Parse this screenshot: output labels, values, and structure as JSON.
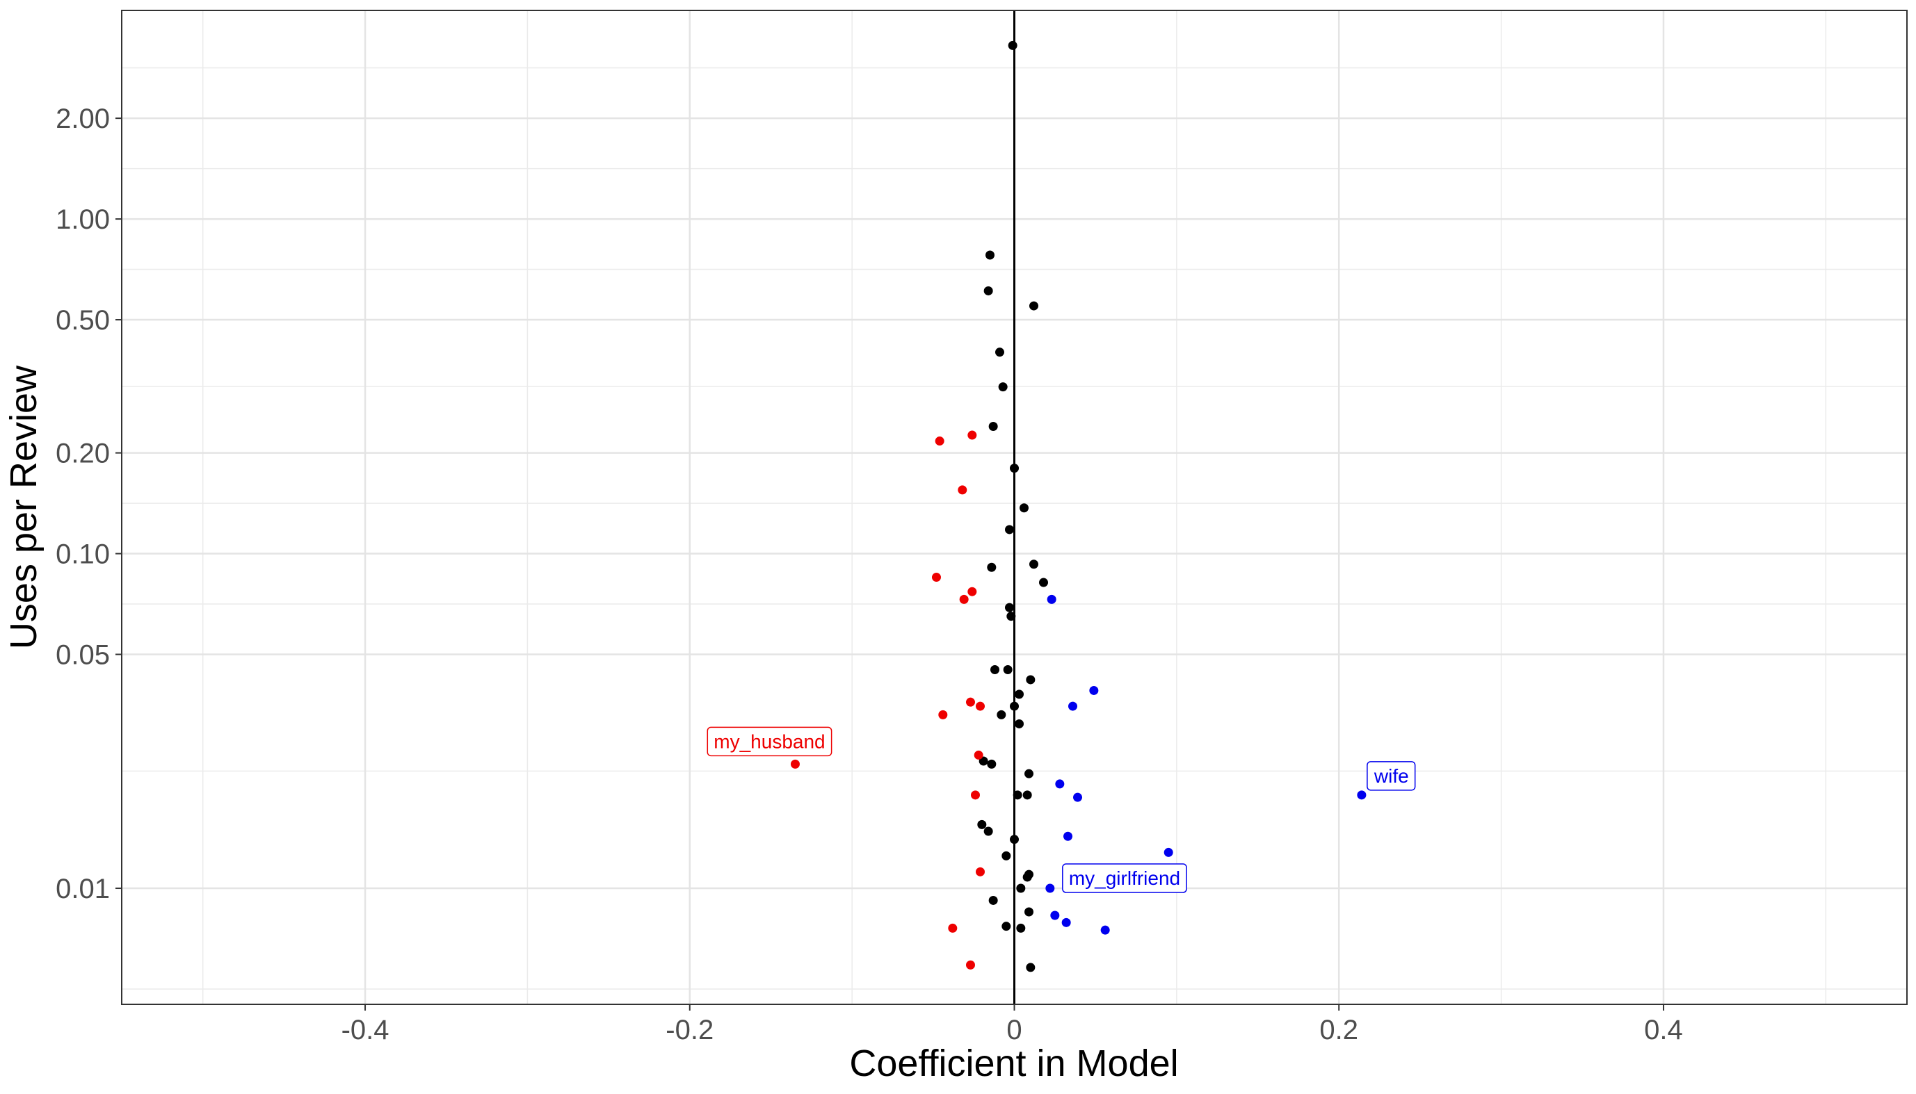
{
  "chart_data": {
    "type": "scatter",
    "xlabel": "Coefficient in Model",
    "ylabel": "Uses per Review",
    "xlim": [
      -0.55,
      0.55
    ],
    "ylim": [
      0.0045,
      4.2
    ],
    "y_scale": "log",
    "grid": true,
    "x_ticks": [
      -0.4,
      -0.2,
      0,
      0.2,
      0.4
    ],
    "x_tick_labels": [
      "-0.4",
      "-0.2",
      "0",
      "0.2",
      "0.4"
    ],
    "y_ticks": [
      0.01,
      0.05,
      0.1,
      0.2,
      0.5,
      1,
      2
    ],
    "y_tick_labels": [
      "0.01",
      "0.05",
      "0.10",
      "0.20",
      "0.50",
      "1.00",
      "2.00"
    ],
    "vertical_reference_line_x": 0,
    "colors": {
      "neutral": "#000000",
      "negative": "#ee0000",
      "positive": "#0000ee"
    },
    "series": [
      {
        "color_key": "neutral",
        "points": [
          [
            -0.001,
            3.3
          ],
          [
            -0.015,
            0.78
          ],
          [
            -0.016,
            0.61
          ],
          [
            0.012,
            0.55
          ],
          [
            -0.009,
            0.4
          ],
          [
            -0.007,
            0.315
          ],
          [
            -0.013,
            0.24
          ],
          [
            0.0,
            0.18
          ],
          [
            0.006,
            0.137
          ],
          [
            -0.003,
            0.118
          ],
          [
            0.012,
            0.093
          ],
          [
            -0.014,
            0.091
          ],
          [
            0.018,
            0.082
          ],
          [
            -0.003,
            0.069
          ],
          [
            -0.002,
            0.065
          ],
          [
            -0.012,
            0.045
          ],
          [
            -0.004,
            0.045
          ],
          [
            0.01,
            0.042
          ],
          [
            0.003,
            0.038
          ],
          [
            0.0,
            0.035
          ],
          [
            -0.008,
            0.033
          ],
          [
            0.003,
            0.031
          ],
          [
            -0.019,
            0.024
          ],
          [
            -0.014,
            0.0235
          ],
          [
            0.009,
            0.022
          ],
          [
            0.002,
            0.019
          ],
          [
            0.008,
            0.019
          ],
          [
            -0.02,
            0.0155
          ],
          [
            -0.016,
            0.0148
          ],
          [
            0.0,
            0.014
          ],
          [
            -0.005,
            0.0125
          ],
          [
            0.009,
            0.011
          ],
          [
            0.008,
            0.0108
          ],
          [
            0.004,
            0.01
          ],
          [
            -0.013,
            0.0092
          ],
          [
            0.009,
            0.0085
          ],
          [
            -0.005,
            0.0077
          ],
          [
            0.004,
            0.0076
          ],
          [
            0.01,
            0.0058
          ]
        ]
      },
      {
        "color_key": "negative",
        "points": [
          [
            -0.046,
            0.217
          ],
          [
            -0.026,
            0.226
          ],
          [
            -0.032,
            0.155
          ],
          [
            -0.048,
            0.085
          ],
          [
            -0.026,
            0.077
          ],
          [
            -0.031,
            0.073
          ],
          [
            -0.027,
            0.036
          ],
          [
            -0.021,
            0.035
          ],
          [
            -0.044,
            0.033
          ],
          [
            -0.135,
            0.0235
          ],
          [
            -0.022,
            0.025
          ],
          [
            -0.024,
            0.019
          ],
          [
            -0.021,
            0.0112
          ],
          [
            -0.038,
            0.0076
          ],
          [
            -0.027,
            0.0059
          ]
        ]
      },
      {
        "color_key": "positive",
        "points": [
          [
            0.023,
            0.073
          ],
          [
            0.049,
            0.039
          ],
          [
            0.036,
            0.035
          ],
          [
            0.028,
            0.0205
          ],
          [
            0.039,
            0.0187
          ],
          [
            0.214,
            0.019
          ],
          [
            0.033,
            0.0143
          ],
          [
            0.095,
            0.0128
          ],
          [
            0.022,
            0.01
          ],
          [
            0.025,
            0.0083
          ],
          [
            0.032,
            0.0079
          ],
          [
            0.056,
            0.0075
          ]
        ]
      }
    ],
    "annotations": [
      {
        "label": "my_husband",
        "x": -0.135,
        "y": 0.0235,
        "color_key": "negative"
      },
      {
        "label": "wife",
        "x": 0.214,
        "y": 0.019,
        "color_key": "positive"
      },
      {
        "label": "my_girlfriend",
        "x": 0.022,
        "y": 0.01,
        "color_key": "positive"
      }
    ]
  }
}
